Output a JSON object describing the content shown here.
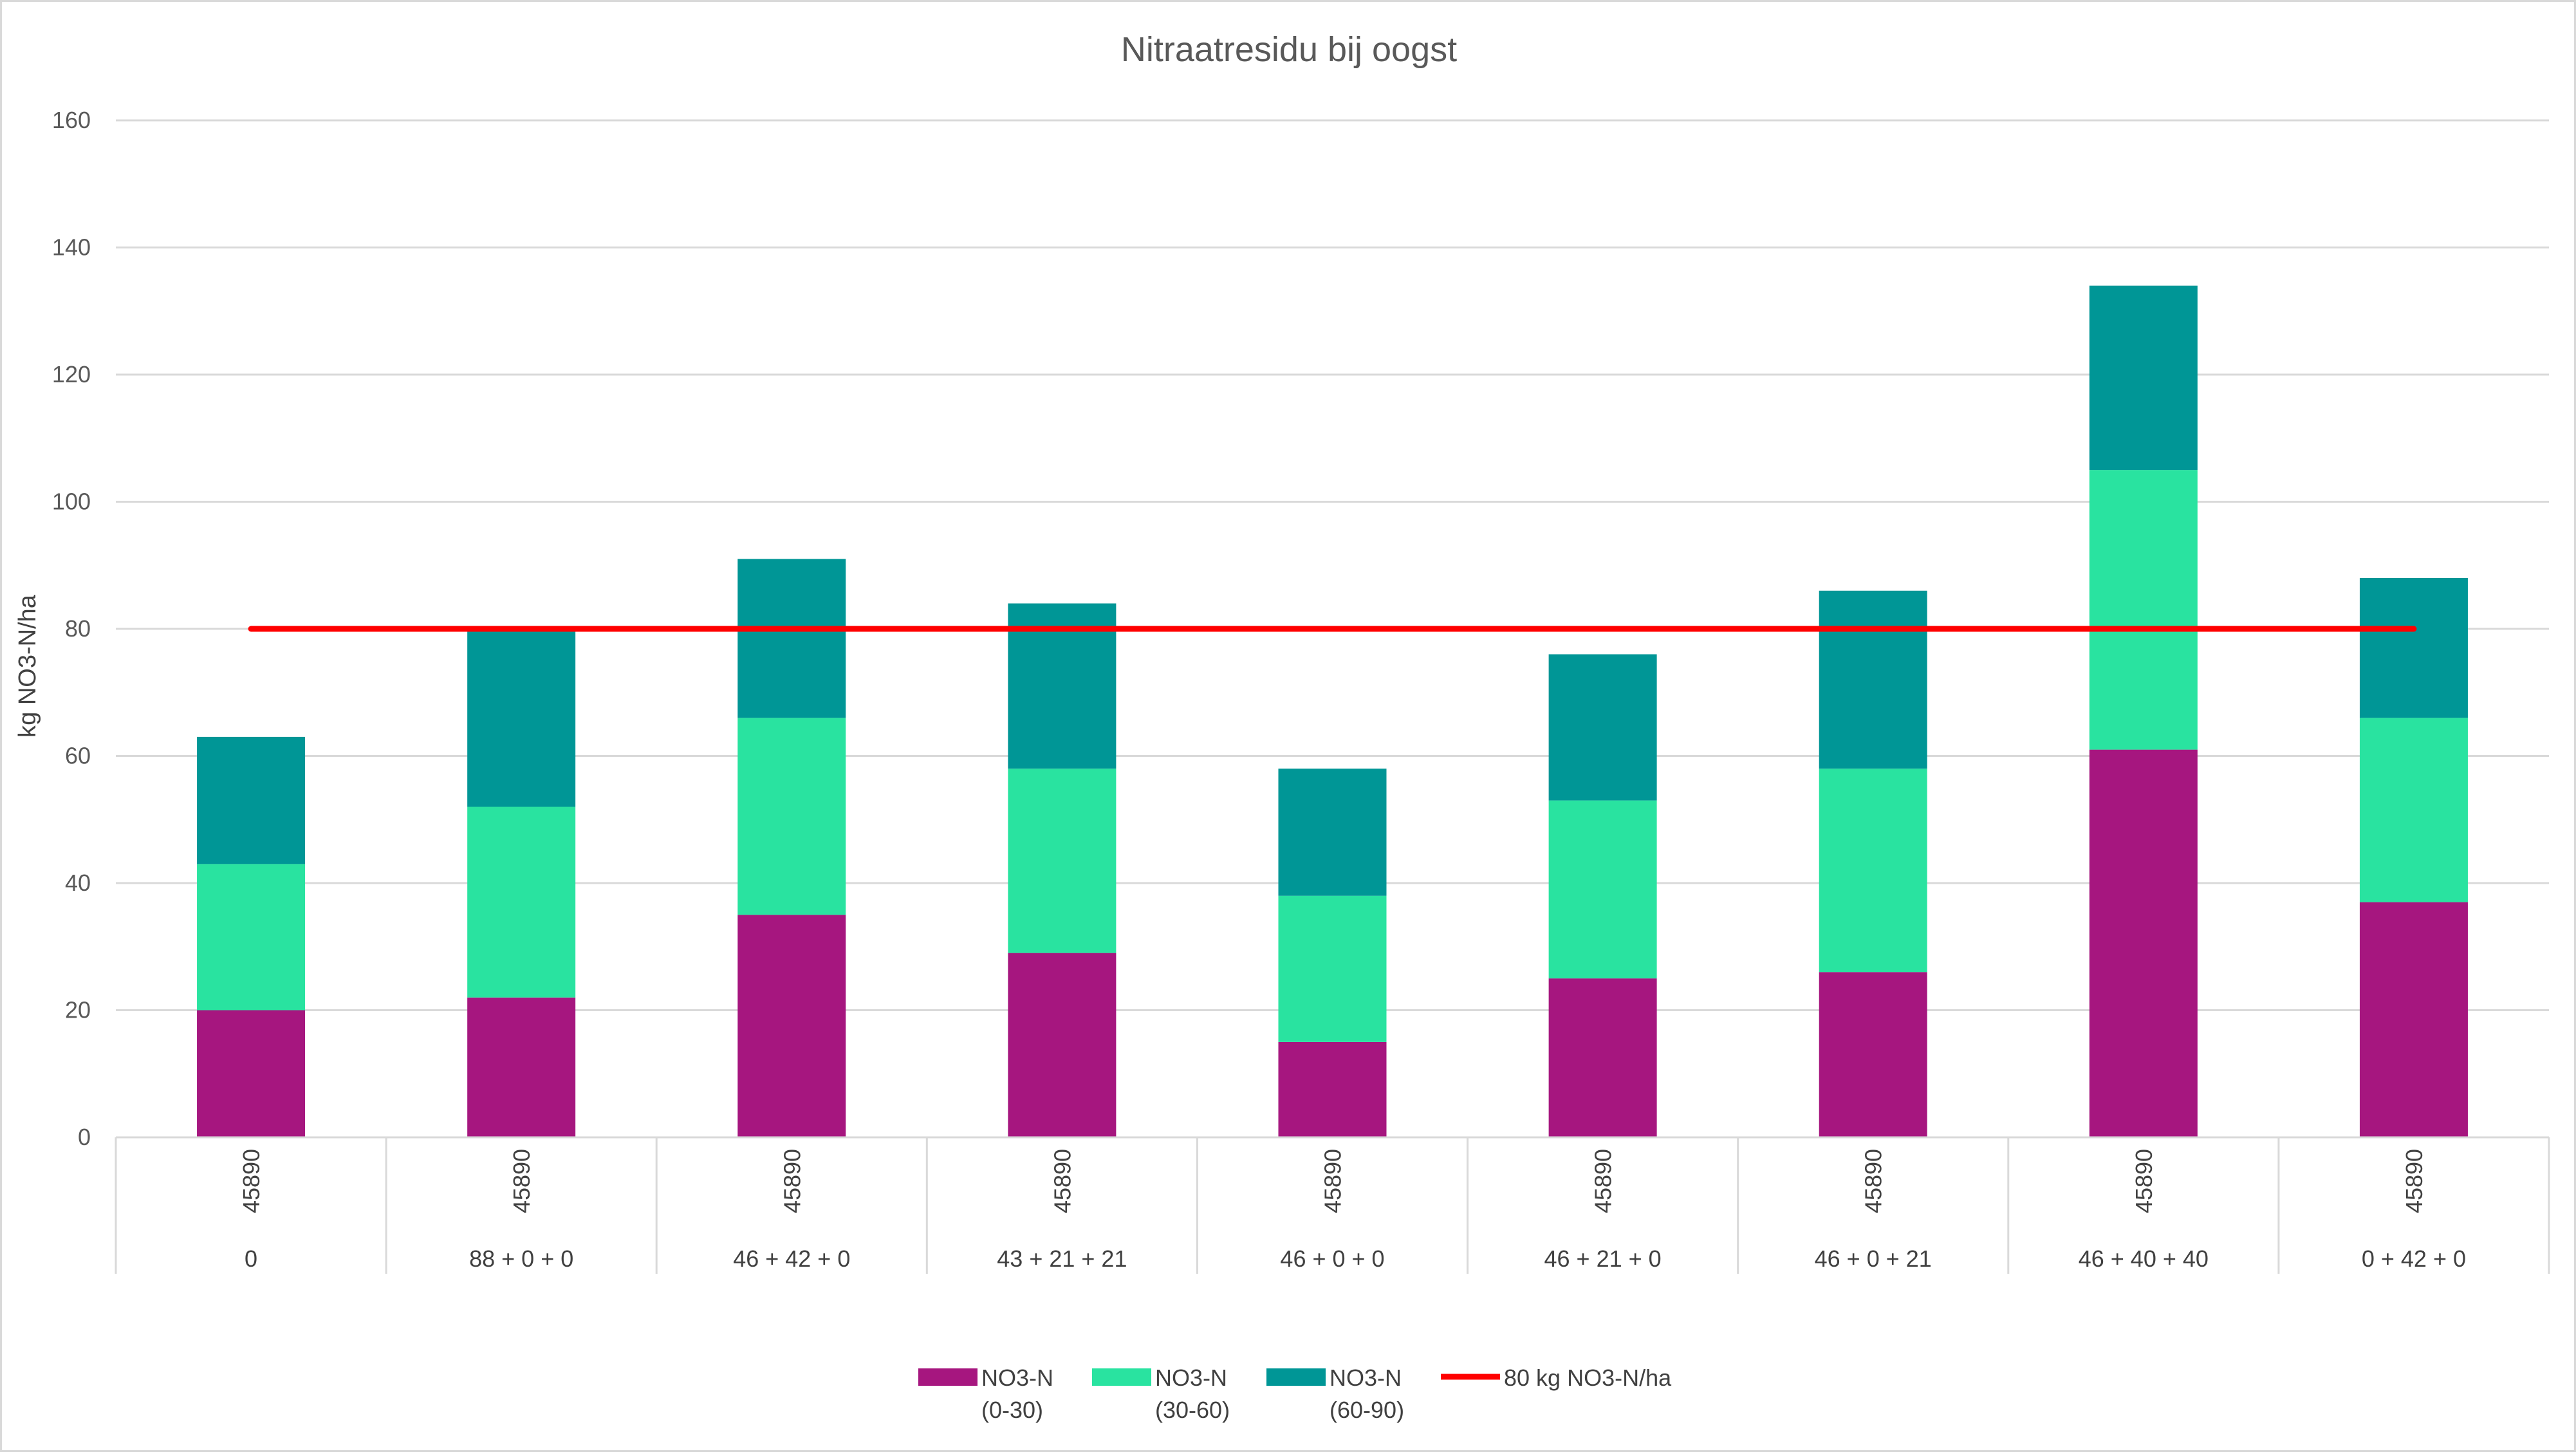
{
  "chart_data": {
    "type": "bar",
    "stacked": true,
    "title": "Nitraatresidu bij oogst",
    "xlabel": "",
    "ylabel": "kg NO3-N/ha",
    "ylim": [
      0,
      160
    ],
    "yticks": [
      0,
      20,
      40,
      60,
      80,
      100,
      120,
      140,
      160
    ],
    "grid": true,
    "legend_position": "bottom",
    "categories": [
      {
        "date": "45890",
        "treatment": "0"
      },
      {
        "date": "45890",
        "treatment": "88 + 0 + 0"
      },
      {
        "date": "45890",
        "treatment": "46 + 42 + 0"
      },
      {
        "date": "45890",
        "treatment": "43 + 21 + 21"
      },
      {
        "date": "45890",
        "treatment": "46 + 0 + 0"
      },
      {
        "date": "45890",
        "treatment": "46 + 21 + 0"
      },
      {
        "date": "45890",
        "treatment": "46 + 0 + 21"
      },
      {
        "date": "45890",
        "treatment": "46 + 40 + 40"
      },
      {
        "date": "45890",
        "treatment": "0 + 42 + 0"
      }
    ],
    "series": [
      {
        "name": "NO3-N",
        "sublabel": "(0-30)",
        "color": "#a6167f",
        "values": [
          20,
          22,
          35,
          29,
          15,
          25,
          26,
          61,
          37
        ]
      },
      {
        "name": "NO3-N",
        "sublabel": "(30-60)",
        "color": "#29e3a0",
        "values": [
          23,
          30,
          31,
          29,
          23,
          28,
          32,
          44,
          29
        ]
      },
      {
        "name": "NO3-N",
        "sublabel": "(60-90)",
        "color": "#009696",
        "values": [
          20,
          28,
          25,
          26,
          20,
          23,
          28,
          29,
          22
        ]
      }
    ],
    "reference_line": {
      "name": "80 kg NO3-N/ha",
      "value": 80,
      "color": "#ff0000"
    }
  }
}
